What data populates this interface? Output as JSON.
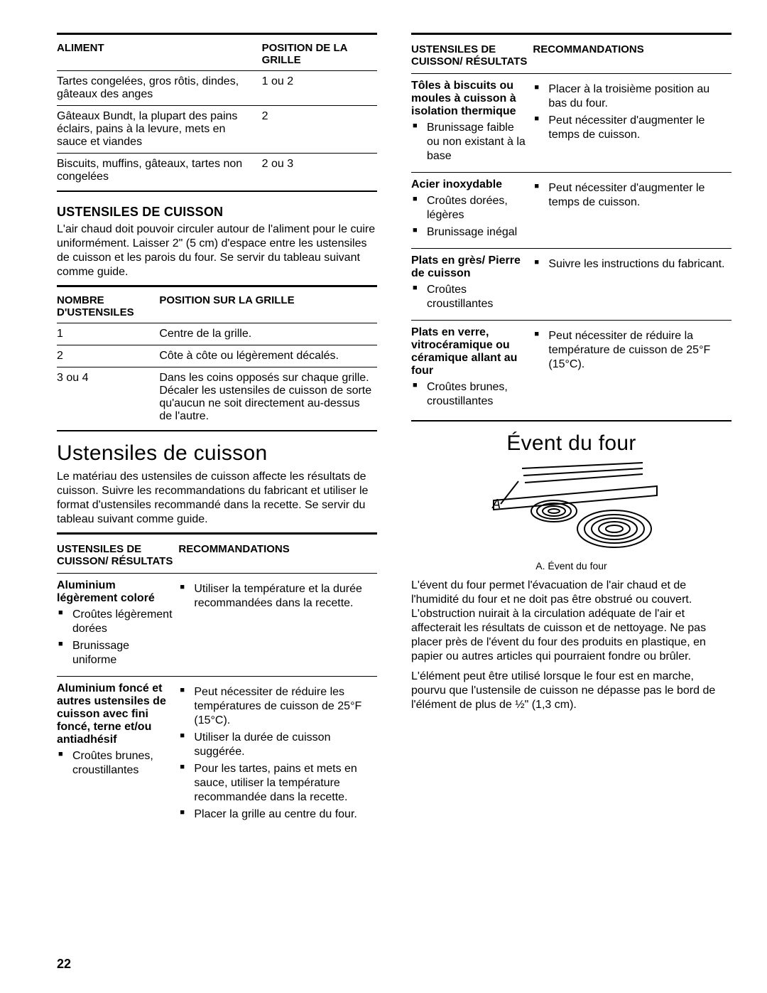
{
  "page_number": "22",
  "left": {
    "table1": {
      "headers": [
        "ALIMENT",
        "POSITION DE LA GRILLE"
      ],
      "col_widths": [
        "64%",
        "36%"
      ],
      "rows": [
        [
          "Tartes congelées, gros rôtis, dindes, gâteaux des anges",
          "1 ou 2"
        ],
        [
          "Gâteaux Bundt, la plupart des pains éclairs, pains à la levure, mets en sauce et viandes",
          "2"
        ],
        [
          "Biscuits, muffins, gâteaux, tartes non congelées",
          "2 ou 3"
        ]
      ]
    },
    "sec1_title": "USTENSILES DE CUISSON",
    "sec1_text": "L'air chaud doit pouvoir circuler autour de l'aliment pour le cuire uniformément. Laisser 2\" (5 cm) d'espace entre les ustensiles de cuisson et les parois du four. Se servir du tableau suivant comme guide.",
    "table2": {
      "headers": [
        "NOMBRE D'USTENSILES",
        "POSITION SUR LA GRILLE"
      ],
      "col_widths": [
        "32%",
        "68%"
      ],
      "rows": [
        [
          "1",
          "Centre de la grille."
        ],
        [
          "2",
          "Côte à côte ou légèrement décalés."
        ],
        [
          "3 ou 4",
          "Dans les coins opposés sur chaque grille. Décaler les ustensiles de cuisson de sorte qu'aucun ne soit directement au-dessus de l'autre."
        ]
      ]
    },
    "h1": "Ustensiles de cuisson",
    "h1_text": "Le matériau des ustensiles de cuisson affecte les résultats de cuisson. Suivre les recommandations du fabricant et utiliser le format d'ustensiles recommandé dans la recette. Se servir du tableau suivant comme guide.",
    "rec_headers": [
      "USTENSILES DE CUISSON/ RÉSULTATS",
      "RECOMMANDATIONS"
    ],
    "rec_rows_left": [
      {
        "name": "Aluminium légèrement coloré",
        "results": [
          "Croûtes légèrement dorées",
          "Brunissage uniforme"
        ],
        "recs": [
          "Utiliser la température et la durée recommandées dans la recette."
        ]
      },
      {
        "name": "Aluminium foncé et autres ustensiles de cuisson avec fini foncé, terne et/ou antiadhésif",
        "results": [
          "Croûtes brunes, croustillantes"
        ],
        "recs": [
          "Peut nécessiter de réduire les températures de cuisson de 25°F (15°C).",
          "Utiliser la durée de cuisson suggérée.",
          "Pour les tartes, pains et mets en sauce, utiliser la température recommandée dans la recette.",
          "Placer la grille au centre du four."
        ]
      }
    ]
  },
  "right": {
    "rec_headers": [
      "USTENSILES DE CUISSON/ RÉSULTATS",
      "RECOMMANDATIONS"
    ],
    "rec_rows_right": [
      {
        "name": "Tôles à biscuits ou moules à cuisson à isolation thermique",
        "results": [
          "Brunissage faible ou non existant à la base"
        ],
        "recs": [
          "Placer à la troisième position au bas du four.",
          "Peut nécessiter d'augmenter le temps de cuisson."
        ]
      },
      {
        "name": "Acier inoxydable",
        "results": [
          "Croûtes dorées, légères",
          "Brunissage inégal"
        ],
        "recs": [
          "Peut nécessiter d'augmenter le temps de cuisson."
        ]
      },
      {
        "name": "Plats en grès/ Pierre de cuisson",
        "results": [
          "Croûtes croustillantes"
        ],
        "recs": [
          "Suivre les instructions du fabricant."
        ]
      },
      {
        "name": "Plats en verre, vitrocéramique ou céramique allant au four",
        "results": [
          "Croûtes brunes, croustillantes"
        ],
        "recs": [
          "Peut nécessiter de réduire la température de cuisson de 25°F (15°C)."
        ]
      }
    ],
    "vent_title": "Évent du four",
    "vent_label_letter": "A",
    "vent_caption": "A. Évent du four",
    "vent_p1": "L'évent du four permet l'évacuation de l'air chaud et de l'humidité du four et ne doit pas être obstrué ou couvert. L'obstruction nuirait à la circulation adéquate de l'air et affecterait les résultats de cuisson et de nettoyage. Ne pas placer près de l'évent du four des produits en plastique, en papier ou autres articles qui pourraient fondre ou brûler.",
    "vent_p2": "L'élément peut être utilisé lorsque le four est en marche, pourvu que l'ustensile de cuisson ne dépasse pas le bord de l'élément de plus de ½\" (1,3 cm)."
  }
}
